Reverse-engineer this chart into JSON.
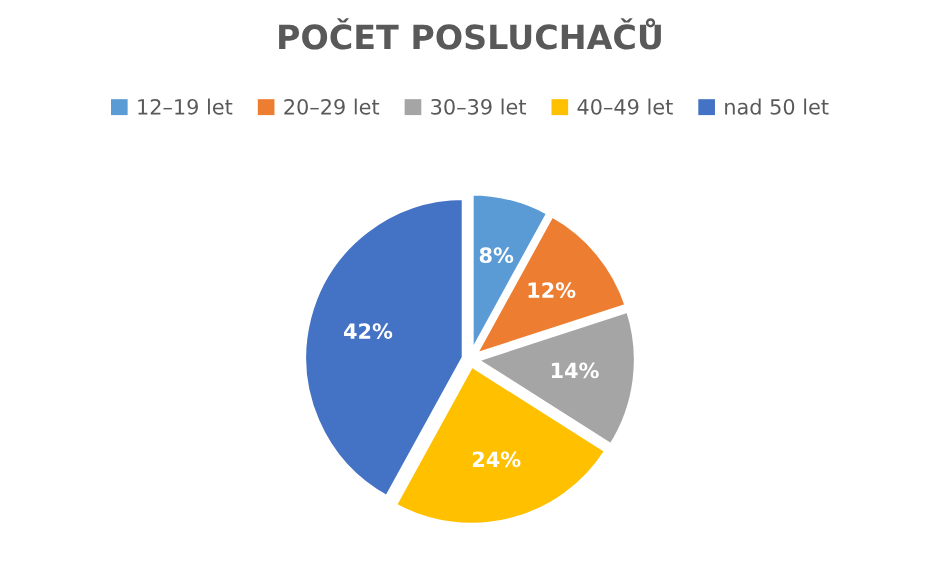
{
  "chart_data": {
    "type": "pie",
    "title": "POČET POSLUCHAČŮ",
    "categories": [
      "12–19 let",
      "20–29 let",
      "30–39 let",
      "40–49 let",
      "nad 50 let"
    ],
    "values": [
      8,
      12,
      14,
      24,
      42
    ],
    "colors": [
      "#5b9bd5",
      "#ed7d31",
      "#a5a5a5",
      "#ffc000",
      "#4472c4"
    ],
    "value_labels": [
      "8%",
      "12%",
      "14%",
      "24%",
      "42%"
    ],
    "legend": "top"
  }
}
